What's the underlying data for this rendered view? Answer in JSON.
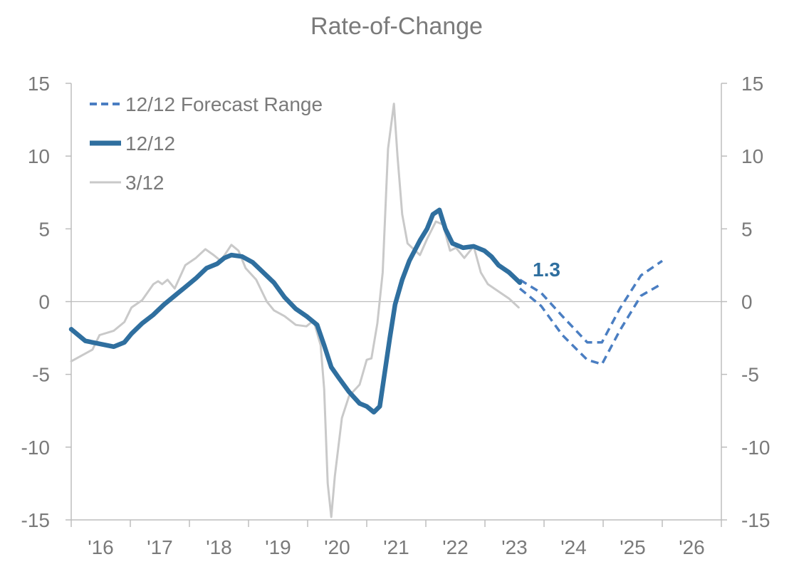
{
  "chart_data": {
    "type": "line",
    "title": "Rate-of-Change",
    "xlabel": "",
    "ylabel": "",
    "xlim": [
      2016,
      2027
    ],
    "ylim": [
      -15,
      15
    ],
    "y_ticks": [
      15,
      10,
      5,
      0,
      -5,
      -10,
      -15
    ],
    "x_tick_labels": [
      "'16",
      "'17",
      "'18",
      "'19",
      "'20",
      "'21",
      "'22",
      "'23",
      "'24",
      "'25",
      "'26"
    ],
    "secondary_y_axis": true,
    "grid": false,
    "zero_line": true,
    "legend_placement": "top-left",
    "colors": {
      "twelve": "#2f6f9f",
      "forecast": "#4a7ec2",
      "three": "#c9c9c9",
      "text": "#7a7a7a",
      "axis": "#bdbdbd"
    },
    "annotation": {
      "text": "1.3",
      "x": 2023.59,
      "y": 1.3
    },
    "series": [
      {
        "name": "12/12 Forecast Range",
        "style": "dashed",
        "role": "forecast-upper",
        "x": [
          2023.59,
          2023.95,
          2024.31,
          2024.73,
          2024.98,
          2025.28,
          2025.64,
          2026.0
        ],
        "y": [
          1.5,
          0.6,
          -1.0,
          -2.8,
          -2.8,
          -0.5,
          1.8,
          2.8
        ]
      },
      {
        "name": "",
        "style": "dashed",
        "role": "forecast-lower",
        "x": [
          2023.59,
          2023.95,
          2024.31,
          2024.73,
          2024.98,
          2025.28,
          2025.64,
          2025.94
        ],
        "y": [
          0.9,
          -0.3,
          -2.3,
          -4.0,
          -4.3,
          -2.0,
          0.4,
          1.1
        ]
      },
      {
        "name": "12/12",
        "style": "thick",
        "x": [
          2016.0,
          2016.24,
          2016.6,
          2016.72,
          2016.9,
          2017.02,
          2017.2,
          2017.39,
          2017.57,
          2017.75,
          2017.93,
          2018.11,
          2018.29,
          2018.47,
          2018.59,
          2018.71,
          2018.89,
          2019.07,
          2019.25,
          2019.43,
          2019.61,
          2019.8,
          2019.98,
          2020.16,
          2020.28,
          2020.4,
          2020.52,
          2020.7,
          2020.88,
          2021.0,
          2021.12,
          2021.22,
          2021.3,
          2021.39,
          2021.48,
          2021.6,
          2021.72,
          2021.9,
          2022.02,
          2022.12,
          2022.23,
          2022.33,
          2022.45,
          2022.63,
          2022.81,
          2022.99,
          2023.11,
          2023.23,
          2023.41,
          2023.59
        ],
        "y": [
          -1.9,
          -2.7,
          -3.0,
          -3.1,
          -2.8,
          -2.2,
          -1.5,
          -0.9,
          -0.2,
          0.4,
          1.0,
          1.6,
          2.3,
          2.6,
          3.0,
          3.2,
          3.1,
          2.7,
          2.0,
          1.3,
          0.3,
          -0.5,
          -1.0,
          -1.6,
          -3.0,
          -4.5,
          -5.2,
          -6.2,
          -7.0,
          -7.2,
          -7.6,
          -7.2,
          -5.0,
          -2.5,
          -0.2,
          1.5,
          2.8,
          4.2,
          5.0,
          6.0,
          6.3,
          5.0,
          4.0,
          3.7,
          3.8,
          3.5,
          3.1,
          2.5,
          2.0,
          1.3
        ]
      },
      {
        "name": "3/12",
        "style": "thin",
        "x": [
          2016.0,
          2016.36,
          2016.48,
          2016.72,
          2016.9,
          2017.02,
          2017.2,
          2017.39,
          2017.47,
          2017.54,
          2017.63,
          2017.75,
          2017.93,
          2018.11,
          2018.27,
          2018.41,
          2018.53,
          2018.71,
          2018.83,
          2018.95,
          2019.13,
          2019.31,
          2019.43,
          2019.61,
          2019.8,
          2019.98,
          2020.1,
          2020.22,
          2020.28,
          2020.34,
          2020.4,
          2020.46,
          2020.58,
          2020.7,
          2020.88,
          2021.0,
          2021.08,
          2021.18,
          2021.27,
          2021.36,
          2021.46,
          2021.52,
          2021.6,
          2021.69,
          2021.9,
          2022.02,
          2022.17,
          2022.29,
          2022.41,
          2022.51,
          2022.65,
          2022.81,
          2022.93,
          2023.05,
          2023.23,
          2023.41,
          2023.57
        ],
        "y": [
          -4.1,
          -3.3,
          -2.3,
          -2.0,
          -1.4,
          -0.4,
          0.1,
          1.2,
          1.4,
          1.2,
          1.5,
          0.9,
          2.5,
          3.0,
          3.6,
          3.2,
          2.8,
          3.9,
          3.5,
          2.3,
          1.5,
          0.0,
          -0.6,
          -1.0,
          -1.6,
          -1.7,
          -1.3,
          -3.0,
          -6.0,
          -12.5,
          -14.8,
          -12.0,
          -8.0,
          -6.5,
          -5.7,
          -4.0,
          -3.9,
          -1.5,
          2.0,
          10.5,
          13.6,
          10.0,
          6.0,
          4.0,
          3.2,
          4.3,
          5.5,
          5.3,
          3.5,
          3.7,
          3.0,
          3.8,
          2.0,
          1.2,
          0.7,
          0.2,
          -0.4
        ]
      }
    ]
  }
}
